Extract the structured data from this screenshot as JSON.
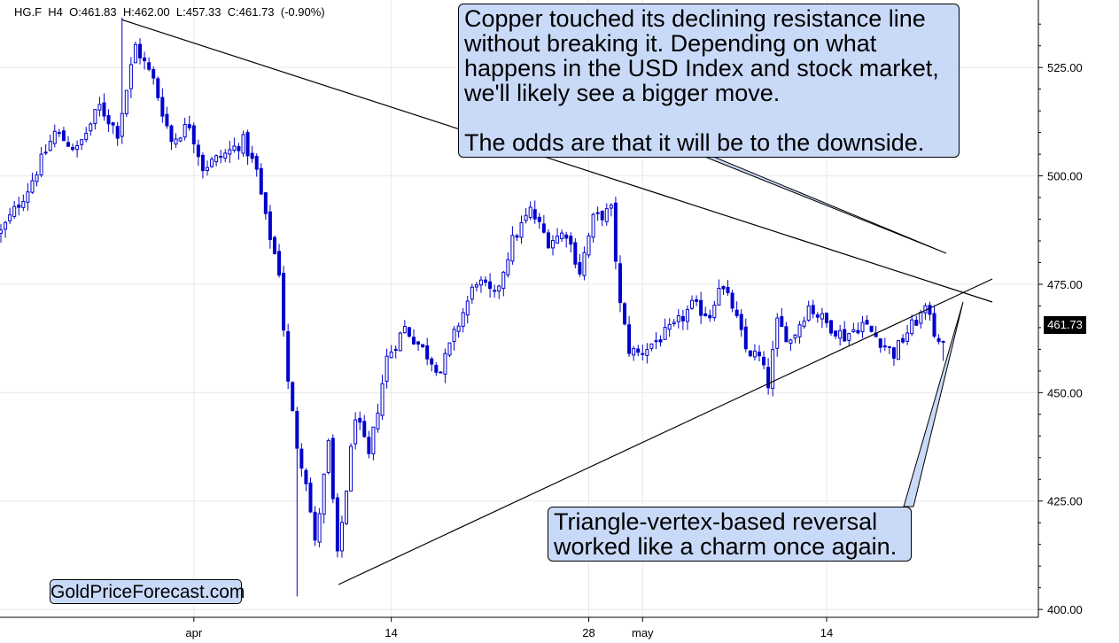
{
  "header": {
    "symbol": "HG.F",
    "timeframe": "H4",
    "open": "O:461.83",
    "high": "H:462.00",
    "low": "L:457.33",
    "close": "C:461.73",
    "change": "(-0.90%)"
  },
  "callouts": {
    "main_lines": [
      "Copper touched its declining resistance line",
      "without breaking it. Depending on what",
      "happens in the USD Index and stock market,",
      "we'll likely see a bigger move."
    ],
    "main_conclusion": "The odds are that it will be to the downside.",
    "reversal_lines": [
      "Triangle-vertex-based reversal",
      "worked like a charm once again."
    ]
  },
  "brand": "GoldPriceForecast.com",
  "last_price_badge": "461.73",
  "colors": {
    "candle": "#0000cc",
    "callout_bg": "#c9daf8",
    "grid": "#e8e8e8",
    "trendline": "#000000"
  },
  "chart_data": {
    "type": "candlestick",
    "title": "",
    "xlabel": "",
    "ylabel": "",
    "ylim": [
      398,
      540
    ],
    "y_ticks": [
      400,
      425,
      450,
      475,
      500,
      525
    ],
    "y_tick_labels": [
      "400.00",
      "425.00",
      "450.00",
      "475.00",
      "500.00",
      "525.00"
    ],
    "x_ticks": [
      "apr",
      "14",
      "28",
      "may",
      "14"
    ],
    "x_tick_bar_index": [
      43,
      87,
      131,
      143,
      184
    ],
    "grid": true,
    "bars_count": 211,
    "close_anchors": [
      [
        0,
        487
      ],
      [
        6,
        497
      ],
      [
        12,
        510
      ],
      [
        17,
        506
      ],
      [
        22,
        516
      ],
      [
        26,
        510
      ],
      [
        30,
        530
      ],
      [
        34,
        522
      ],
      [
        38,
        508
      ],
      [
        42,
        512
      ],
      [
        45,
        502
      ],
      [
        50,
        505
      ],
      [
        54,
        508
      ],
      [
        57,
        501
      ],
      [
        59,
        490
      ],
      [
        62,
        478
      ],
      [
        64,
        452
      ],
      [
        66,
        438
      ],
      [
        68,
        430
      ],
      [
        70,
        415
      ],
      [
        73,
        438
      ],
      [
        75,
        412
      ],
      [
        77,
        428
      ],
      [
        79,
        445
      ],
      [
        82,
        435
      ],
      [
        86,
        458
      ],
      [
        90,
        465
      ],
      [
        94,
        460
      ],
      [
        98,
        455
      ],
      [
        102,
        466
      ],
      [
        106,
        476
      ],
      [
        110,
        472
      ],
      [
        114,
        485
      ],
      [
        118,
        492
      ],
      [
        122,
        485
      ],
      [
        126,
        487
      ],
      [
        129,
        478
      ],
      [
        132,
        490
      ],
      [
        136,
        492
      ],
      [
        138,
        470
      ],
      [
        140,
        460
      ],
      [
        142,
        459
      ],
      [
        146,
        462
      ],
      [
        150,
        465
      ],
      [
        154,
        470
      ],
      [
        158,
        468
      ],
      [
        160,
        475
      ],
      [
        163,
        470
      ],
      [
        166,
        460
      ],
      [
        169,
        458
      ],
      [
        171,
        452
      ],
      [
        173,
        466
      ],
      [
        176,
        462
      ],
      [
        180,
        470
      ],
      [
        184,
        466
      ],
      [
        188,
        463
      ],
      [
        192,
        466
      ],
      [
        196,
        462
      ],
      [
        199,
        459
      ],
      [
        202,
        464
      ],
      [
        205,
        468
      ],
      [
        207,
        469
      ],
      [
        208,
        464
      ],
      [
        210,
        461.73
      ]
    ],
    "resistance_line": {
      "from": [
        27,
        536
      ],
      "to": [
        217,
        467
      ]
    },
    "support_line": {
      "from": [
        70,
        404
      ],
      "to": [
        217,
        472
      ]
    },
    "last_bar": {
      "open": 461.83,
      "high": 462.0,
      "low": 457.33,
      "close": 461.73
    }
  }
}
